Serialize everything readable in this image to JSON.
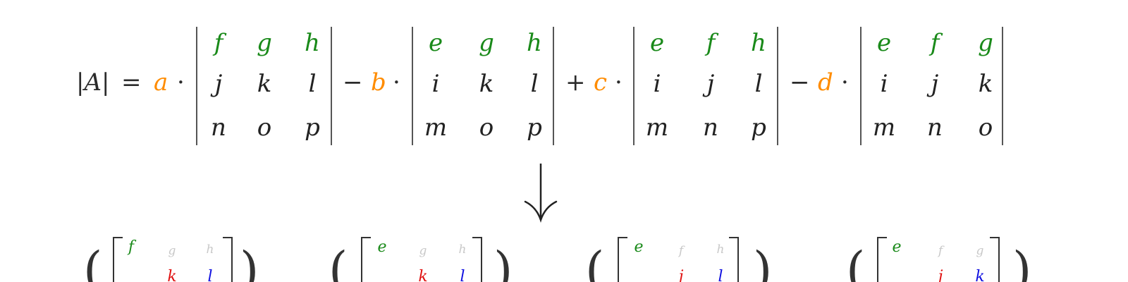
{
  "colors": {
    "coefficient": "#ff8c00",
    "first_row": "#1a8a1a",
    "text": "#2b2b2b",
    "faded": "#c8c8c8",
    "red": "#e01010",
    "blue": "#1010e0"
  },
  "equation": {
    "lhs": "|A|",
    "equals": "=",
    "dot": "·",
    "terms": [
      {
        "sign": "",
        "coefficient": "a",
        "rows": [
          [
            "f",
            "g",
            "h"
          ],
          [
            "j",
            "k",
            "l"
          ],
          [
            "n",
            "o",
            "p"
          ]
        ]
      },
      {
        "sign": "−",
        "coefficient": "b",
        "rows": [
          [
            "e",
            "g",
            "h"
          ],
          [
            "i",
            "k",
            "l"
          ],
          [
            "m",
            "o",
            "p"
          ]
        ]
      },
      {
        "sign": "+",
        "coefficient": "c",
        "rows": [
          [
            "e",
            "f",
            "h"
          ],
          [
            "i",
            "j",
            "l"
          ],
          [
            "m",
            "n",
            "p"
          ]
        ]
      },
      {
        "sign": "−",
        "coefficient": "d",
        "rows": [
          [
            "e",
            "f",
            "g"
          ],
          [
            "i",
            "j",
            "k"
          ],
          [
            "m",
            "n",
            "o"
          ]
        ]
      }
    ]
  },
  "arrow": {
    "icon": "down-arrow-icon"
  },
  "bottom_row": {
    "groups": [
      {
        "paren": "(",
        "top": [
          "f",
          "g",
          "h"
        ],
        "second": [
          "",
          "k",
          "l"
        ]
      },
      {
        "paren": "(",
        "top": [
          "e",
          "g",
          "h"
        ],
        "second": [
          "",
          "k",
          "l"
        ]
      },
      {
        "paren": "(",
        "top": [
          "e",
          "f",
          "h"
        ],
        "second": [
          "",
          "j",
          "l"
        ]
      },
      {
        "paren": "(",
        "top": [
          "e",
          "f",
          "g"
        ],
        "second": [
          "",
          "j",
          "k"
        ]
      }
    ],
    "closing_paren": ")"
  }
}
